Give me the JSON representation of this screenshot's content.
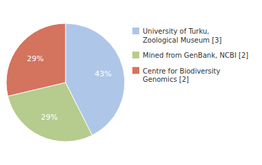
{
  "chart_data": {
    "type": "pie",
    "categories": [
      "University of Turku,\nZoological Museum [3]",
      "Mined from GenBank, NCBI [2]",
      "Centre for Biodiversity\nGenomics [2]"
    ],
    "values": [
      43,
      29,
      29
    ],
    "value_labels": [
      "43%",
      "29%",
      "29%"
    ],
    "colors": [
      "#aec6e8",
      "#b5cc8e",
      "#d4735e"
    ],
    "data_labels": true,
    "legend": "right"
  }
}
